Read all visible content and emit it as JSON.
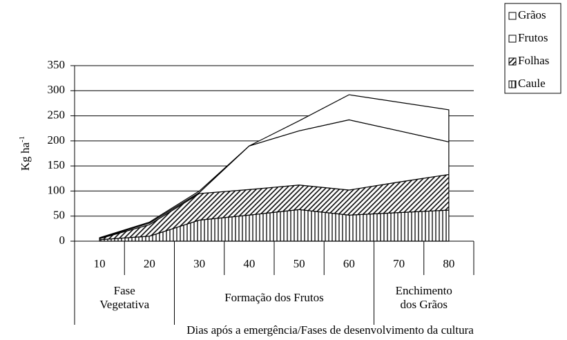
{
  "chart_data": {
    "type": "stacked_area",
    "x_label": "Dias após a emergência/Fases de desenvolvimento da cultura",
    "y_label": {
      "base": "Kg ha",
      "sup": "-1"
    },
    "categories": [
      "10",
      "20",
      "30",
      "40",
      "50",
      "60",
      "70",
      "80"
    ],
    "phases": [
      {
        "lines": [
          "Fase",
          "Vegetativa"
        ]
      },
      {
        "lines": [
          "Formação dos Frutos"
        ]
      },
      {
        "lines": [
          "Enchimento",
          "dos Grãos"
        ]
      }
    ],
    "series": [
      {
        "name": "Caule",
        "color": "#000000",
        "pattern": "vertical",
        "values": [
          3,
          10,
          42,
          52,
          63,
          52,
          57,
          62
        ]
      },
      {
        "name": "Folhas",
        "color": "#000000",
        "pattern": "diagonal",
        "values": [
          2,
          23,
          53,
          51,
          49,
          50,
          61,
          71
        ]
      },
      {
        "name": "Frutos",
        "color": "#000000",
        "pattern": "none",
        "values": [
          1,
          3,
          2,
          87,
          108,
          140,
          102,
          65
        ]
      },
      {
        "name": "Grãos",
        "color": "#000000",
        "pattern": "none",
        "values": [
          1,
          2,
          3,
          0,
          20,
          50,
          57,
          64
        ]
      }
    ],
    "ylim": [
      0,
      350
    ],
    "yticks": [
      0,
      50,
      100,
      150,
      200,
      250,
      300,
      350
    ],
    "grid": true,
    "legend": "top-right"
  }
}
